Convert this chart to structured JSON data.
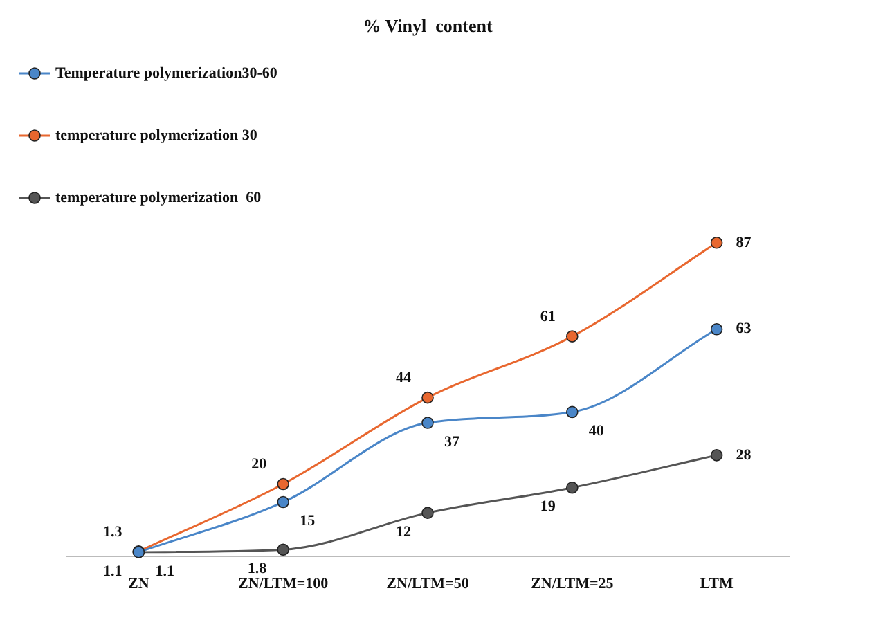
{
  "chart_data": {
    "type": "line",
    "title": "% Vinyl  content",
    "categories": [
      "ZN",
      "ZN/LTM=100",
      "ZN/LTM=50",
      "ZN/LTM=25",
      "LTM"
    ],
    "series": [
      {
        "name": "Temperature polymerization30-60",
        "color": "#4a86c8",
        "values": [
          1.1,
          15,
          37,
          40,
          63
        ]
      },
      {
        "name": "temperature polymerization 30",
        "color": "#e8672f",
        "values": [
          1.3,
          20,
          44,
          61,
          87
        ]
      },
      {
        "name": "temperature polymerization  60",
        "color": "#555555",
        "values": [
          1.1,
          1.8,
          12,
          19,
          28
        ]
      }
    ],
    "data_labels": true,
    "legend": "top left",
    "marker": "circle",
    "grid": false
  }
}
